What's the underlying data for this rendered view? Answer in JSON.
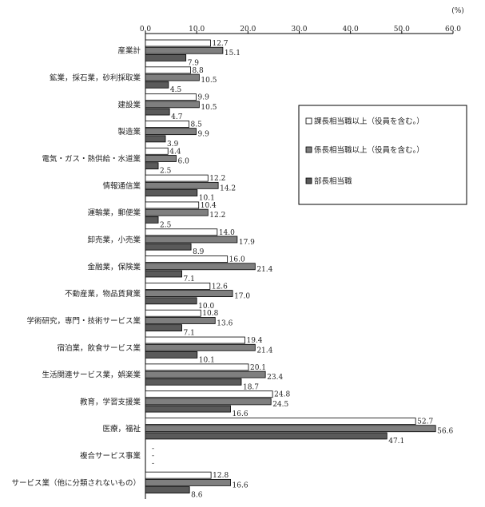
{
  "chart_data": {
    "type": "bar",
    "orientation": "horizontal",
    "unit": "(%)",
    "xlim": [
      0,
      60
    ],
    "ticks": [
      "0.0",
      "10.0",
      "20.0",
      "30.0",
      "40.0",
      "50.0",
      "60.0"
    ],
    "grid": false,
    "legend_position": "right",
    "categories": [
      "産業計",
      "鉱業，採石業，砂利採取業",
      "建設業",
      "製造業",
      "電気・ガス・熱供給・水道業",
      "情報通信業",
      "運輸業，郵便業",
      "卸売業，小売業",
      "金融業，保険業",
      "不動産業，物品賃貸業",
      "学術研究，専門・技術サービス業",
      "宿泊業，飲食サービス業",
      "生活関連サービス業，娯楽業",
      "教育，学習支援業",
      "医療，福祉",
      "複合サービス事業",
      "サービス業（他に分類されないもの）"
    ],
    "series": [
      {
        "name": "課長相当職以上（役員を含む。）",
        "color": "#ffffff",
        "values": [
          12.7,
          8.8,
          9.9,
          8.5,
          4.4,
          12.2,
          10.4,
          14.0,
          16.0,
          12.6,
          10.8,
          19.4,
          20.1,
          24.8,
          52.7,
          null,
          12.8
        ],
        "labels": [
          "12.7",
          "8.8",
          "9.9",
          "8.5",
          "4.4",
          "12.2",
          "10.4",
          "14.0",
          "16.0",
          "12.6",
          "10.8",
          "19.4",
          "20.1",
          "24.8",
          "52.7",
          "-",
          "12.8"
        ]
      },
      {
        "name": "係長相当職以上（役員を含む。）",
        "color": "#7f7f7f",
        "values": [
          15.1,
          10.5,
          10.5,
          9.9,
          6.0,
          14.2,
          12.2,
          17.9,
          21.4,
          17.0,
          13.6,
          21.4,
          23.4,
          24.5,
          56.6,
          null,
          16.6
        ],
        "labels": [
          "15.1",
          "10.5",
          "10.5",
          "9.9",
          "6.0",
          "14.2",
          "12.2",
          "17.9",
          "21.4",
          "17.0",
          "13.6",
          "21.4",
          "23.4",
          "24.5",
          "56.6",
          "-",
          "16.6"
        ]
      },
      {
        "name": "部長相当職",
        "color": "#5a5a5a",
        "values": [
          7.9,
          4.5,
          4.7,
          3.9,
          2.5,
          10.1,
          2.5,
          8.9,
          7.1,
          10.0,
          7.1,
          10.1,
          18.7,
          16.6,
          47.1,
          null,
          8.6
        ],
        "labels": [
          "7.9",
          "4.5",
          "4.7",
          "3.9",
          "2.5",
          "10.1",
          "2.5",
          "8.9",
          "7.1",
          "10.0",
          "7.1",
          "10.1",
          "18.7",
          "16.6",
          "47.1",
          "-",
          "8.6"
        ]
      }
    ]
  }
}
